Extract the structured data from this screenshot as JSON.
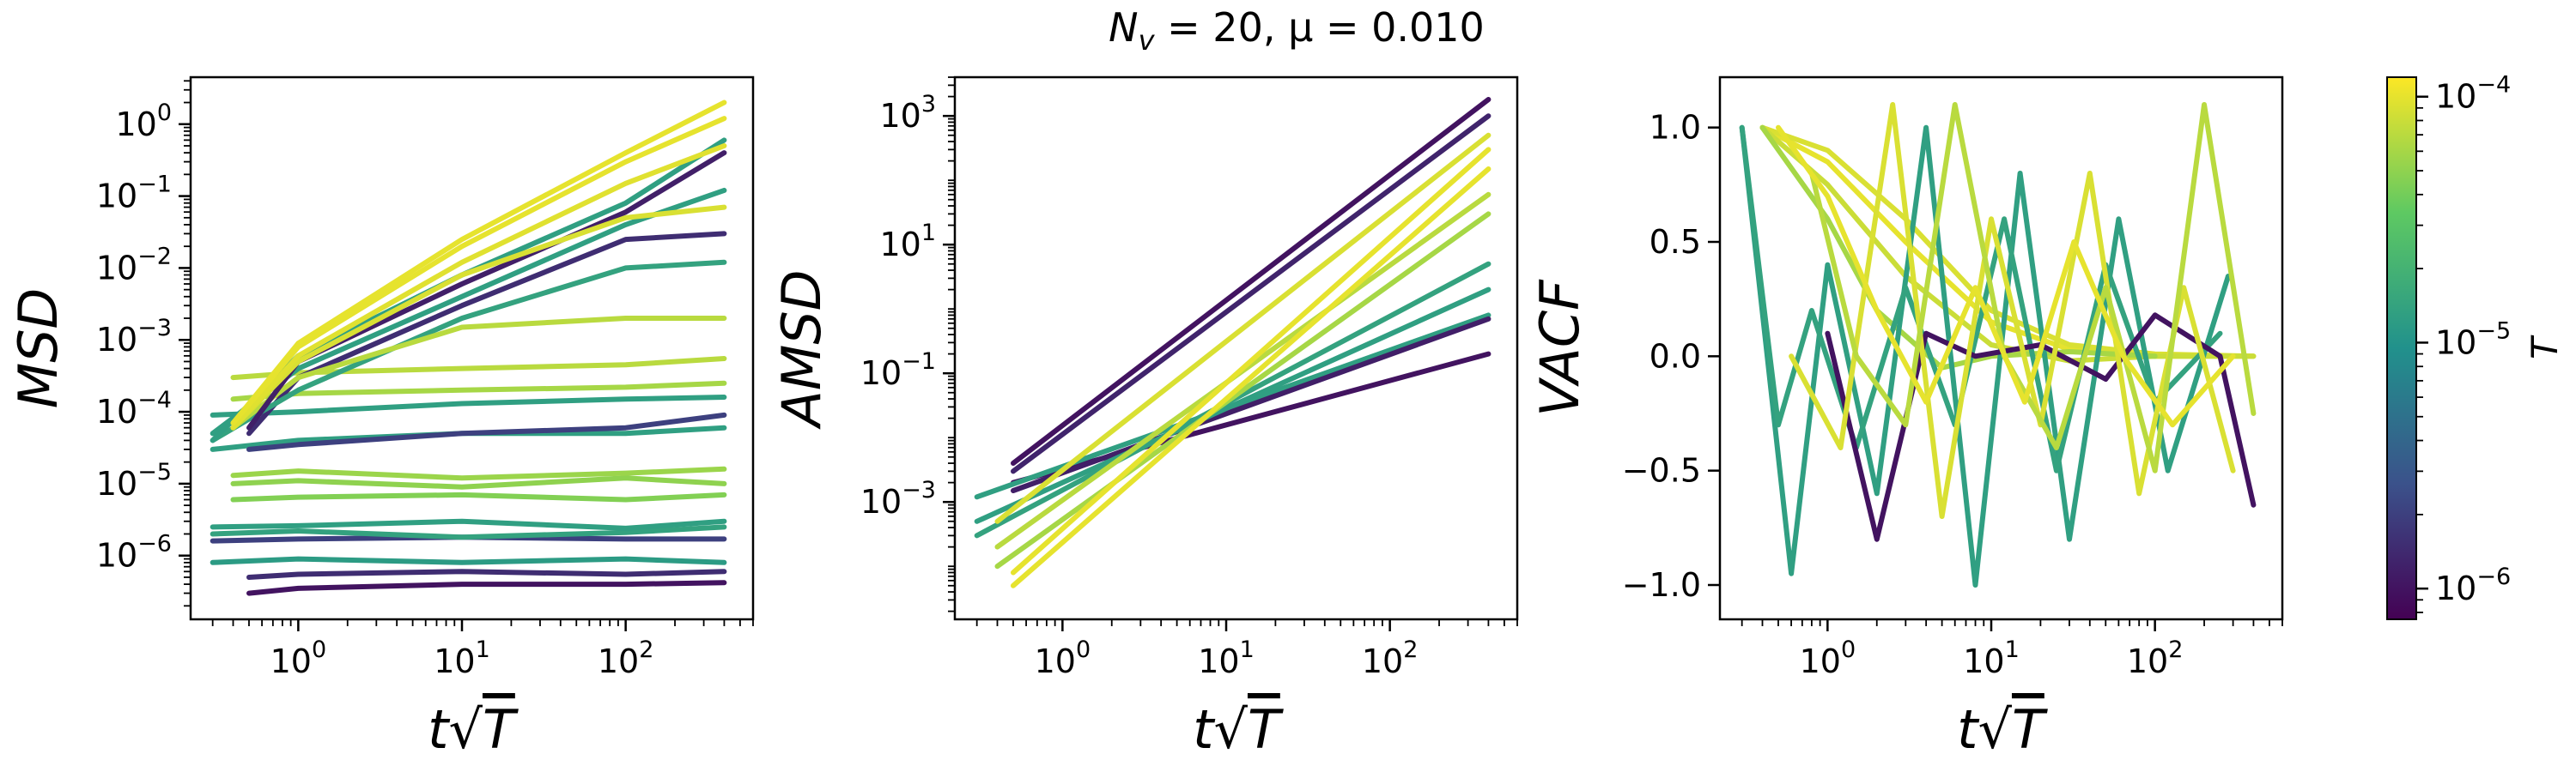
{
  "suptitle": {
    "base": "N",
    "sub": "v",
    "rest": " = 20, μ = 0.010"
  },
  "xlabel": {
    "t": "t",
    "rad": "√",
    "T": "T"
  },
  "colorbar": {
    "label": "T",
    "ticks": [
      {
        "label": "10",
        "exp": "−4",
        "value": 0.0001
      },
      {
        "label": "10",
        "exp": "−5",
        "value": 1e-05
      },
      {
        "label": "10",
        "exp": "−6",
        "value": 1e-06
      }
    ],
    "range": [
      7.5e-07,
      0.00012
    ],
    "colormap": "viridis",
    "stops": [
      "#440154",
      "#3b528b",
      "#21918c",
      "#5ec962",
      "#fde725"
    ]
  },
  "chart_data": [
    {
      "type": "line",
      "ylabel": "MSD",
      "xscale": "log",
      "yscale": "log",
      "xlim": [
        0.22,
        600
      ],
      "ylim": [
        1.3e-07,
        4.5
      ],
      "xticks": [
        {
          "label": "10",
          "exp": "0",
          "value": 1
        },
        {
          "label": "10",
          "exp": "1",
          "value": 10
        },
        {
          "label": "10",
          "exp": "2",
          "value": 100
        }
      ],
      "yticks": [
        {
          "label": "10",
          "exp": "0",
          "value": 1
        },
        {
          "label": "10",
          "exp": "−1",
          "value": 0.1
        },
        {
          "label": "10",
          "exp": "−2",
          "value": 0.01
        },
        {
          "label": "10",
          "exp": "−3",
          "value": 0.001
        },
        {
          "label": "10",
          "exp": "−4",
          "value": 0.0001
        },
        {
          "label": "10",
          "exp": "−5",
          "value": 1e-05
        },
        {
          "label": "10",
          "exp": "−6",
          "value": 1e-06
        }
      ],
      "series": [
        {
          "T": 1e-06,
          "x": [
            0.5,
            1,
            10,
            100,
            400
          ],
          "y": [
            3e-07,
            3.5e-07,
            4e-07,
            4e-07,
            4.2e-07
          ]
        },
        {
          "T": 1.5e-06,
          "x": [
            0.5,
            1,
            10,
            100,
            400
          ],
          "y": [
            5e-07,
            5.5e-07,
            6e-07,
            5.5e-07,
            6e-07
          ]
        },
        {
          "T": 2e-06,
          "x": [
            0.3,
            1,
            10,
            100,
            400
          ],
          "y": [
            1.6e-06,
            1.7e-06,
            1.8e-06,
            1.7e-06,
            1.7e-06
          ]
        },
        {
          "T": 1.2e-05,
          "x": [
            0.3,
            1,
            10,
            100,
            400
          ],
          "y": [
            8e-07,
            9e-07,
            8e-07,
            9e-07,
            8e-07
          ]
        },
        {
          "T": 1.4e-05,
          "x": [
            0.3,
            1,
            10,
            100,
            400
          ],
          "y": [
            2e-06,
            2.2e-06,
            1.8e-06,
            2.1e-06,
            2.5e-06
          ]
        },
        {
          "T": 1.3e-05,
          "x": [
            0.3,
            1,
            10,
            100,
            400
          ],
          "y": [
            2.5e-06,
            2.6e-06,
            3e-06,
            2.4e-06,
            3e-06
          ]
        },
        {
          "T": 4.5e-05,
          "x": [
            0.4,
            1,
            10,
            100,
            400
          ],
          "y": [
            6e-06,
            6.5e-06,
            7e-06,
            6e-06,
            7e-06
          ]
        },
        {
          "T": 5e-05,
          "x": [
            0.4,
            1,
            10,
            100,
            400
          ],
          "y": [
            1e-05,
            1.1e-05,
            9e-06,
            1.2e-05,
            1e-05
          ]
        },
        {
          "T": 5.5e-05,
          "x": [
            0.4,
            1,
            10,
            100,
            400
          ],
          "y": [
            1.3e-05,
            1.5e-05,
            1.2e-05,
            1.4e-05,
            1.6e-05
          ]
        },
        {
          "T": 1.3e-05,
          "x": [
            0.3,
            1,
            10,
            100,
            400
          ],
          "y": [
            3e-05,
            4e-05,
            5e-05,
            5e-05,
            6e-05
          ]
        },
        {
          "T": 2e-06,
          "x": [
            0.5,
            1,
            10,
            100,
            400
          ],
          "y": [
            3e-05,
            3.5e-05,
            5e-05,
            6e-05,
            9e-05
          ]
        },
        {
          "T": 1.3e-05,
          "x": [
            0.3,
            1,
            10,
            100,
            400
          ],
          "y": [
            9e-05,
            0.0001,
            0.00013,
            0.00015,
            0.00016
          ]
        },
        {
          "T": 6e-05,
          "x": [
            0.4,
            1,
            10,
            100,
            400
          ],
          "y": [
            0.00015,
            0.00018,
            0.0002,
            0.00022,
            0.00025
          ]
        },
        {
          "T": 7e-05,
          "x": [
            0.4,
            1,
            10,
            100,
            400
          ],
          "y": [
            0.0003,
            0.00035,
            0.0004,
            0.00045,
            0.00055
          ]
        },
        {
          "T": 1.5e-06,
          "x": [
            0.5,
            1,
            10,
            100,
            400
          ],
          "y": [
            5e-05,
            0.0003,
            0.003,
            0.025,
            0.03
          ]
        },
        {
          "T": 1.4e-05,
          "x": [
            0.3,
            1,
            10,
            100,
            400
          ],
          "y": [
            4e-05,
            0.0002,
            0.002,
            0.01,
            0.012
          ]
        },
        {
          "T": 7e-05,
          "x": [
            0.4,
            1,
            10,
            100,
            400
          ],
          "y": [
            6e-05,
            0.0003,
            0.0015,
            0.002,
            0.002
          ]
        },
        {
          "T": 1.3e-05,
          "x": [
            0.3,
            1,
            10,
            100,
            400
          ],
          "y": [
            5e-05,
            0.0004,
            0.004,
            0.04,
            0.12
          ]
        },
        {
          "T": 1.2e-06,
          "x": [
            0.5,
            1,
            10,
            100,
            400
          ],
          "y": [
            6e-05,
            0.0005,
            0.006,
            0.06,
            0.4
          ]
        },
        {
          "T": 1.3e-05,
          "x": [
            0.3,
            1,
            10,
            100,
            400
          ],
          "y": [
            4e-05,
            0.0006,
            0.008,
            0.08,
            0.6
          ]
        },
        {
          "T": 9e-05,
          "x": [
            0.4,
            1,
            10,
            100,
            400
          ],
          "y": [
            6e-05,
            0.0005,
            0.008,
            0.05,
            0.07
          ]
        },
        {
          "T": 9.5e-05,
          "x": [
            0.4,
            1,
            10,
            100,
            400
          ],
          "y": [
            6e-05,
            0.0006,
            0.012,
            0.15,
            0.5
          ]
        },
        {
          "T": 0.0001,
          "x": [
            0.4,
            1,
            10,
            100,
            400
          ],
          "y": [
            7e-05,
            0.0008,
            0.02,
            0.3,
            1.2
          ]
        },
        {
          "T": 0.0001,
          "x": [
            0.4,
            1,
            10,
            100,
            400
          ],
          "y": [
            7e-05,
            0.0009,
            0.025,
            0.4,
            2.0
          ]
        }
      ]
    },
    {
      "type": "line",
      "ylabel": "AMSD",
      "xscale": "log",
      "yscale": "log",
      "xlim": [
        0.22,
        600
      ],
      "ylim": [
        1.5e-05,
        4000
      ],
      "xticks": [
        {
          "label": "10",
          "exp": "0",
          "value": 1
        },
        {
          "label": "10",
          "exp": "1",
          "value": 10
        },
        {
          "label": "10",
          "exp": "2",
          "value": 100
        }
      ],
      "yticks": [
        {
          "label": "10",
          "exp": "3",
          "value": 1000
        },
        {
          "label": "10",
          "exp": "1",
          "value": 10
        },
        {
          "label": "10",
          "exp": "−1",
          "value": 0.1
        },
        {
          "label": "10",
          "exp": "−3",
          "value": 0.001
        }
      ],
      "series": [
        {
          "T": 1e-06,
          "x": [
            0.5,
            400
          ],
          "y": [
            0.002,
            0.2
          ]
        },
        {
          "T": 1.3e-05,
          "x": [
            0.3,
            400
          ],
          "y": [
            0.0012,
            0.8
          ]
        },
        {
          "T": 1.2e-06,
          "x": [
            0.5,
            400
          ],
          "y": [
            0.0015,
            0.7
          ]
        },
        {
          "T": 1.3e-05,
          "x": [
            0.3,
            400
          ],
          "y": [
            0.0005,
            2.0
          ]
        },
        {
          "T": 1.4e-05,
          "x": [
            0.3,
            400
          ],
          "y": [
            0.0003,
            5.0
          ]
        },
        {
          "T": 6e-05,
          "x": [
            0.4,
            400
          ],
          "y": [
            0.0001,
            30
          ]
        },
        {
          "T": 7e-05,
          "x": [
            0.4,
            400
          ],
          "y": [
            0.0002,
            60
          ]
        },
        {
          "T": 0.0001,
          "x": [
            0.5,
            400
          ],
          "y": [
            5e-05,
            150
          ]
        },
        {
          "T": 0.0001,
          "x": [
            0.5,
            400
          ],
          "y": [
            8e-05,
            300
          ]
        },
        {
          "T": 9e-05,
          "x": [
            0.4,
            400
          ],
          "y": [
            0.0005,
            500
          ]
        },
        {
          "T": 1.3e-06,
          "x": [
            0.5,
            400
          ],
          "y": [
            0.003,
            1000
          ]
        },
        {
          "T": 1e-06,
          "x": [
            0.5,
            400
          ],
          "y": [
            0.004,
            1800
          ]
        }
      ]
    },
    {
      "type": "line",
      "ylabel": "VACF",
      "xscale": "log",
      "yscale": "linear",
      "xlim": [
        0.22,
        600
      ],
      "ylim": [
        -1.15,
        1.22
      ],
      "xticks": [
        {
          "label": "10",
          "exp": "0",
          "value": 1
        },
        {
          "label": "10",
          "exp": "1",
          "value": 10
        },
        {
          "label": "10",
          "exp": "2",
          "value": 100
        }
      ],
      "yticks": [
        {
          "label": "1.0",
          "value": 1.0
        },
        {
          "label": "0.5",
          "value": 0.5
        },
        {
          "label": "0.0",
          "value": 0.0
        },
        {
          "label": "−0.5",
          "value": -0.5
        },
        {
          "label": "−1.0",
          "value": -1.0
        }
      ],
      "series": [
        {
          "T": 0.0001,
          "x": [
            0.4,
            1,
            3,
            10,
            30,
            100,
            400
          ],
          "y": [
            1.0,
            0.85,
            0.5,
            0.15,
            0.03,
            0.0,
            0.0
          ]
        },
        {
          "T": 9e-05,
          "x": [
            0.4,
            1,
            3,
            10,
            30,
            100,
            400
          ],
          "y": [
            1.0,
            0.9,
            0.6,
            0.2,
            0.05,
            0.01,
            0.0
          ]
        },
        {
          "T": 8e-05,
          "x": [
            0.4,
            1,
            3,
            10,
            30,
            100,
            400
          ],
          "y": [
            1.0,
            0.75,
            0.35,
            0.05,
            -0.02,
            0.0,
            0.0
          ]
        },
        {
          "T": 6e-05,
          "x": [
            0.4,
            1,
            2,
            5,
            10,
            30,
            100
          ],
          "y": [
            1.0,
            0.6,
            0.2,
            -0.05,
            0.0,
            0.02,
            0.0
          ]
        },
        {
          "T": 1.3e-05,
          "x": [
            0.3,
            0.6,
            1,
            2,
            4,
            8,
            15,
            30,
            60,
            120,
            280
          ],
          "y": [
            1.0,
            -0.95,
            0.4,
            -0.6,
            1.0,
            -1.0,
            0.8,
            -0.8,
            0.6,
            -0.5,
            0.35
          ]
        },
        {
          "T": 1.4e-05,
          "x": [
            0.3,
            0.5,
            0.8,
            1.5,
            3,
            6,
            12,
            25,
            50,
            100,
            250
          ],
          "y": [
            1.0,
            -0.3,
            0.2,
            -0.4,
            0.3,
            -0.3,
            0.6,
            -0.5,
            0.4,
            -0.2,
            0.1
          ]
        },
        {
          "T": 1e-06,
          "x": [
            1,
            2,
            4,
            8,
            20,
            50,
            100,
            250,
            400
          ],
          "y": [
            0.1,
            -0.8,
            0.1,
            0.0,
            0.05,
            -0.1,
            0.18,
            0.0,
            -0.65
          ]
        },
        {
          "T": 9e-05,
          "x": [
            0.6,
            1.2,
            2.5,
            5,
            10,
            20,
            40,
            80,
            150,
            300
          ],
          "y": [
            0.0,
            -0.4,
            1.1,
            -0.7,
            0.6,
            -0.3,
            0.8,
            -0.6,
            0.3,
            -0.5
          ]
        },
        {
          "T": 7e-05,
          "x": [
            0.8,
            1.5,
            3,
            6,
            12,
            25,
            50,
            100,
            200,
            400
          ],
          "y": [
            0.8,
            0.0,
            -0.3,
            1.1,
            0.0,
            -0.4,
            0.3,
            -0.5,
            1.1,
            -0.25
          ]
        },
        {
          "T": 0.0001,
          "x": [
            0.5,
            1,
            2,
            4,
            8,
            16,
            32,
            64,
            128,
            300
          ],
          "y": [
            1.0,
            0.7,
            0.2,
            -0.2,
            0.3,
            -0.2,
            0.5,
            0.0,
            -0.3,
            0.0
          ]
        }
      ]
    }
  ]
}
